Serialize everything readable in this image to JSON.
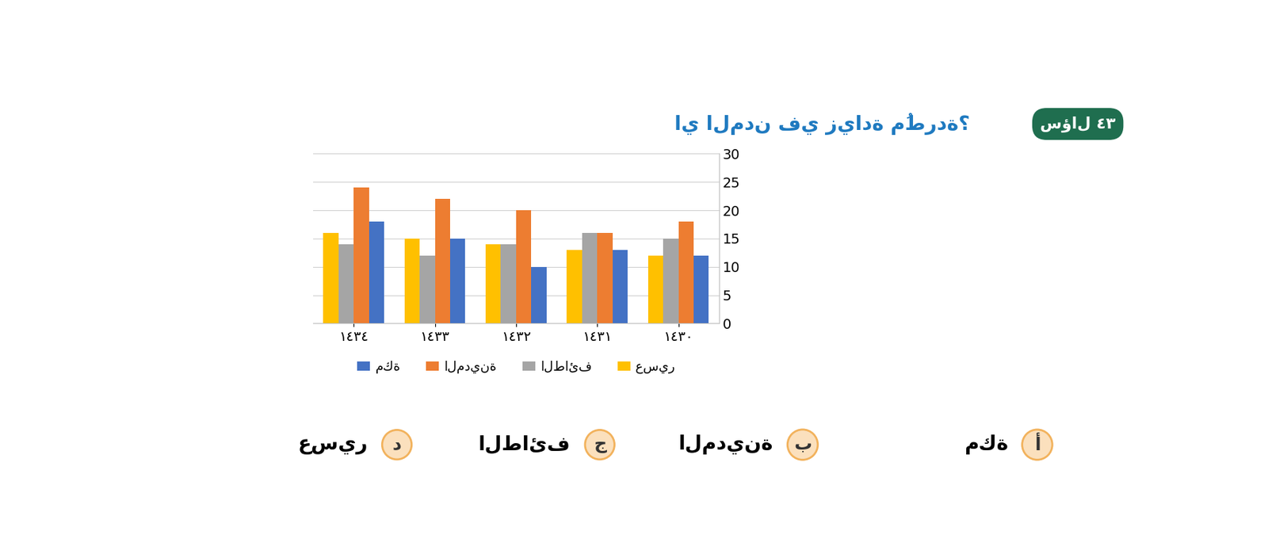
{
  "chart_data": {
    "type": "bar",
    "categories": [
      "١٤٣٤",
      "١٤٣٣",
      "١٤٣٢",
      "١٤٣١",
      "١٤٣٠"
    ],
    "series": [
      {
        "name": "عسير",
        "color": "#FFC000",
        "values": [
          16,
          15,
          14,
          13,
          12
        ]
      },
      {
        "name": "الطائف",
        "color": "#A5A5A5",
        "values": [
          14,
          12,
          14,
          16,
          15
        ]
      },
      {
        "name": "المدينة",
        "color": "#ED7D31",
        "values": [
          24,
          22,
          20,
          16,
          18
        ]
      },
      {
        "name": "مكة",
        "color": "#4472C4",
        "values": [
          18,
          15,
          10,
          13,
          12
        ]
      }
    ],
    "ylim": [
      0,
      30
    ],
    "yticks": [
      0,
      5,
      10,
      15,
      20,
      25,
      30
    ],
    "grid": true,
    "legend": "upper center"
  },
  "question": {
    "label": "سؤال",
    "number": "٤٣",
    "text": "اي المدن في زيادة مُطردة؟"
  },
  "options": [
    {
      "letter": "أ",
      "text": "مكة"
    },
    {
      "letter": "ب",
      "text": "المدينة"
    },
    {
      "letter": "ج",
      "text": "الطائف"
    },
    {
      "letter": "د",
      "text": "عسير"
    }
  ]
}
